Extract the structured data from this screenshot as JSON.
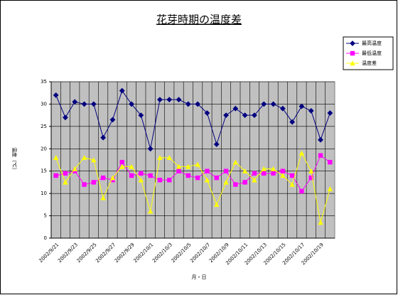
{
  "chart_data": {
    "type": "line",
    "title": "花芽時期の温度差",
    "xlabel": "月・日",
    "ylabel": "温度（℃）",
    "categories": [
      "2002/9/21",
      null,
      "2002/9/23",
      null,
      "2002/9/25",
      null,
      "2002/9/27",
      null,
      "2002/9/29",
      null,
      "2002/10/1",
      null,
      "2002/10/3",
      null,
      "2002/10/5",
      null,
      "2002/10/7",
      null,
      "2002/10/9",
      null,
      "2002/10/11",
      null,
      "2002/10/13",
      null,
      "2002/10/15",
      null,
      "2002/10/17",
      null,
      "2002/10/19",
      null
    ],
    "series": [
      {
        "name": "最高温度",
        "color": "#000080",
        "marker": "diamond",
        "values": [
          32,
          27,
          30.5,
          30,
          30,
          22.5,
          26.5,
          33,
          30,
          27.5,
          20,
          31,
          31,
          31,
          30,
          30,
          28,
          21,
          27.5,
          29,
          27.5,
          27.5,
          30,
          30,
          29,
          26,
          29.5,
          28.5,
          22,
          28
        ]
      },
      {
        "name": "最低温度",
        "color": "#ff00ff",
        "marker": "square",
        "values": [
          14,
          14.5,
          15,
          12,
          12.5,
          13.5,
          13,
          17,
          14,
          14.5,
          14,
          13,
          13,
          15,
          14,
          13.5,
          15,
          13.5,
          15,
          12,
          12.5,
          14.5,
          14.5,
          14.5,
          15,
          14,
          10.5,
          13.5,
          18.5,
          17
        ]
      },
      {
        "name": "温度差",
        "color": "#ffff00",
        "marker": "triangle",
        "values": [
          18,
          12.5,
          15.5,
          18,
          17.5,
          9,
          13.5,
          16,
          16,
          13,
          6,
          18,
          18,
          16,
          16,
          16.5,
          13,
          7.5,
          12.5,
          17,
          15,
          13,
          15.5,
          15.5,
          14,
          12,
          19,
          15,
          3.5,
          11
        ]
      }
    ],
    "ylim": [
      0,
      35
    ],
    "yticks": [
      0,
      5,
      10,
      15,
      20,
      25,
      30,
      35
    ],
    "grid": true,
    "legend": "upper right"
  }
}
